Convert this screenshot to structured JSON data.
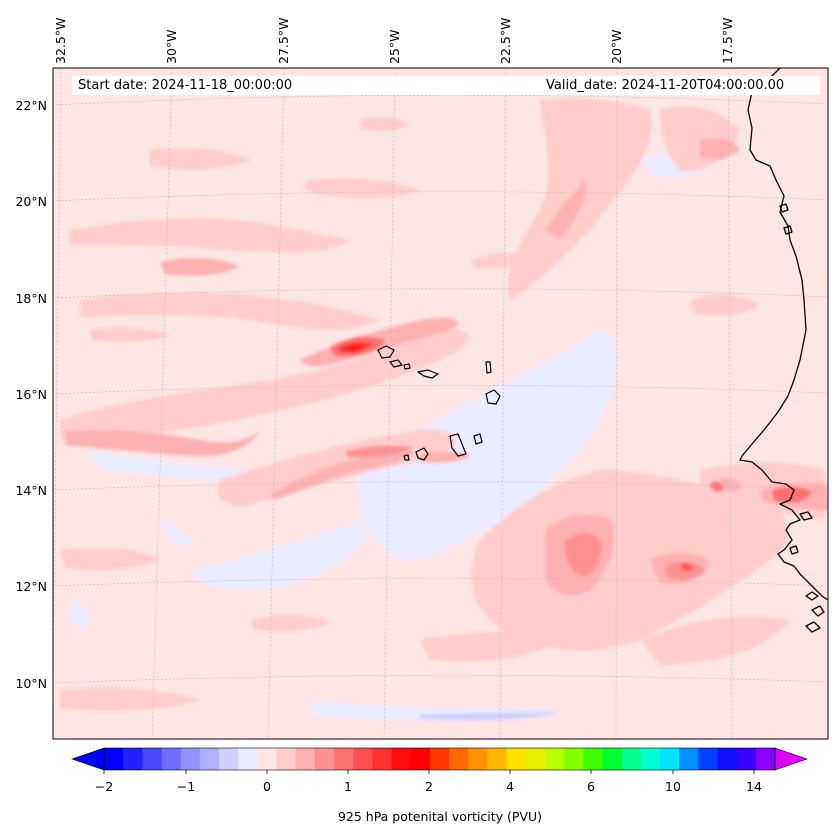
{
  "map": {
    "start_date": "Start date: 2024-11-18_00:00:00",
    "valid_date": "Valid_date: 2024-11-20T04:00:00.00",
    "lon_labels": [
      "32.5°W",
      "30°W",
      "27.5°W",
      "25°W",
      "22.5°W",
      "20°W",
      "17.5°W"
    ],
    "lat_labels": [
      "22°N",
      "20°N",
      "18°N",
      "16°N",
      "14°N",
      "12°N",
      "10°N"
    ],
    "extent": {
      "lon_min": -33.0,
      "lon_max": -15.0,
      "lat_min": 8.9,
      "lat_max": 22.8
    },
    "gridlines": true,
    "features": [
      "West African coastline",
      "Cape Verde islands"
    ]
  },
  "colorbar": {
    "label": "925 hPa potenital vorticity (PVU)",
    "tick_labels": [
      "−2",
      "−1",
      "0",
      "1",
      "2",
      "4",
      "6",
      "10",
      "14"
    ],
    "extend": "both",
    "colors": [
      "#0000ff",
      "#2020ff",
      "#4848ff",
      "#6e6eff",
      "#9191ff",
      "#b0b0ff",
      "#d0d0ff",
      "#ececff",
      "#ffe6e6",
      "#ffcccc",
      "#ffb0b0",
      "#ff9090",
      "#ff7070",
      "#ff5050",
      "#ff3030",
      "#ff0e0e",
      "#ff0000",
      "#ff3a00",
      "#ff6a00",
      "#ff9400",
      "#ffb800",
      "#ffe400",
      "#e8f000",
      "#b8ff00",
      "#84ff00",
      "#3cff00",
      "#00ff30",
      "#00ff90",
      "#00ffd0",
      "#00e4ff",
      "#0090ff",
      "#0040ff",
      "#1010ff",
      "#3c00ff",
      "#8800ff"
    ],
    "extend_low_color": "#0000ff",
    "extend_high_color": "#dd00ff"
  }
}
